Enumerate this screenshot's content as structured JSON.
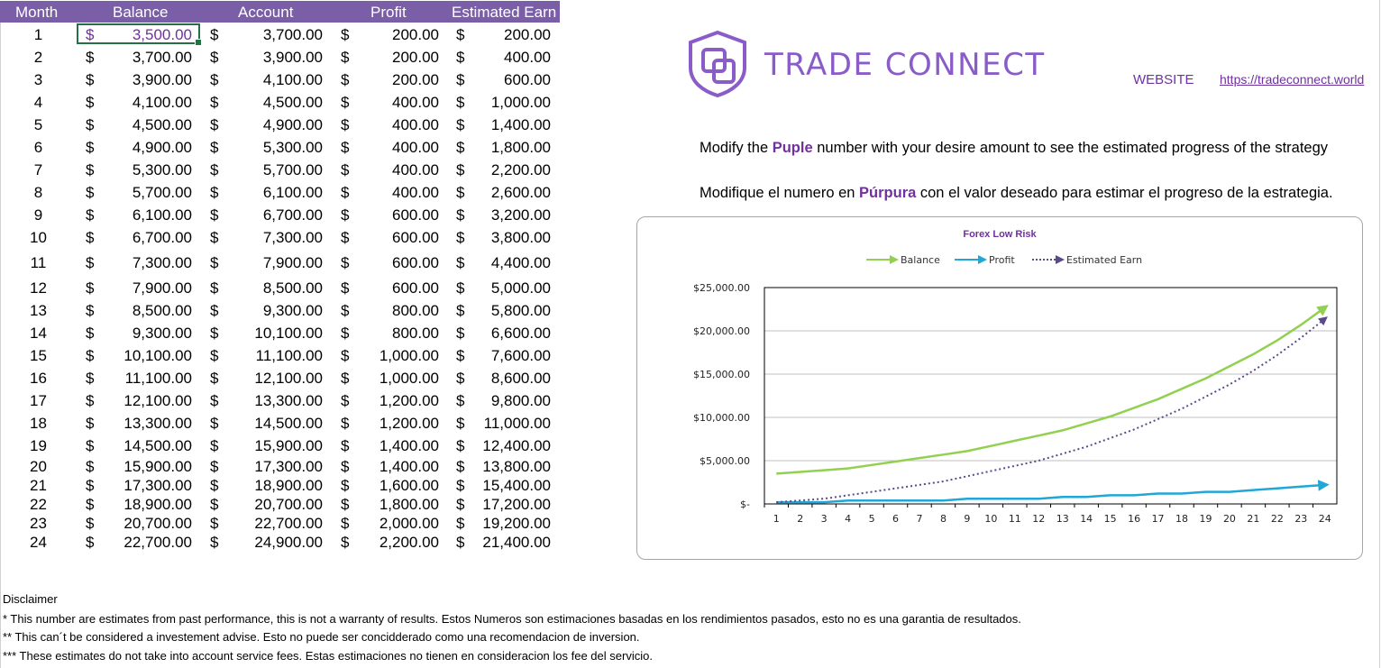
{
  "table": {
    "headers": [
      "Month",
      "Balance",
      "Account",
      "Profit",
      "Estimated Earn"
    ],
    "currency": "$",
    "rows": [
      {
        "month": "1",
        "balance": "3,500.00",
        "account": "3,700.00",
        "profit": "200.00",
        "earn": "200.00"
      },
      {
        "month": "2",
        "balance": "3,700.00",
        "account": "3,900.00",
        "profit": "200.00",
        "earn": "400.00"
      },
      {
        "month": "3",
        "balance": "3,900.00",
        "account": "4,100.00",
        "profit": "200.00",
        "earn": "600.00"
      },
      {
        "month": "4",
        "balance": "4,100.00",
        "account": "4,500.00",
        "profit": "400.00",
        "earn": "1,000.00"
      },
      {
        "month": "5",
        "balance": "4,500.00",
        "account": "4,900.00",
        "profit": "400.00",
        "earn": "1,400.00"
      },
      {
        "month": "6",
        "balance": "4,900.00",
        "account": "5,300.00",
        "profit": "400.00",
        "earn": "1,800.00"
      },
      {
        "month": "7",
        "balance": "5,300.00",
        "account": "5,700.00",
        "profit": "400.00",
        "earn": "2,200.00"
      },
      {
        "month": "8",
        "balance": "5,700.00",
        "account": "6,100.00",
        "profit": "400.00",
        "earn": "2,600.00"
      },
      {
        "month": "9",
        "balance": "6,100.00",
        "account": "6,700.00",
        "profit": "600.00",
        "earn": "3,200.00"
      },
      {
        "month": "10",
        "balance": "6,700.00",
        "account": "7,300.00",
        "profit": "600.00",
        "earn": "3,800.00"
      },
      {
        "month": "11",
        "balance": "7,300.00",
        "account": "7,900.00",
        "profit": "600.00",
        "earn": "4,400.00"
      },
      {
        "month": "12",
        "balance": "7,900.00",
        "account": "8,500.00",
        "profit": "600.00",
        "earn": "5,000.00"
      },
      {
        "month": "13",
        "balance": "8,500.00",
        "account": "9,300.00",
        "profit": "800.00",
        "earn": "5,800.00"
      },
      {
        "month": "14",
        "balance": "9,300.00",
        "account": "10,100.00",
        "profit": "800.00",
        "earn": "6,600.00"
      },
      {
        "month": "15",
        "balance": "10,100.00",
        "account": "11,100.00",
        "profit": "1,000.00",
        "earn": "7,600.00"
      },
      {
        "month": "16",
        "balance": "11,100.00",
        "account": "12,100.00",
        "profit": "1,000.00",
        "earn": "8,600.00"
      },
      {
        "month": "17",
        "balance": "12,100.00",
        "account": "13,300.00",
        "profit": "1,200.00",
        "earn": "9,800.00"
      },
      {
        "month": "18",
        "balance": "13,300.00",
        "account": "14,500.00",
        "profit": "1,200.00",
        "earn": "11,000.00"
      },
      {
        "month": "19",
        "balance": "14,500.00",
        "account": "15,900.00",
        "profit": "1,400.00",
        "earn": "12,400.00"
      },
      {
        "month": "20",
        "balance": "15,900.00",
        "account": "17,300.00",
        "profit": "1,400.00",
        "earn": "13,800.00"
      },
      {
        "month": "21",
        "balance": "17,300.00",
        "account": "18,900.00",
        "profit": "1,600.00",
        "earn": "15,400.00"
      },
      {
        "month": "22",
        "balance": "18,900.00",
        "account": "20,700.00",
        "profit": "1,800.00",
        "earn": "17,200.00"
      },
      {
        "month": "23",
        "balance": "20,700.00",
        "account": "22,700.00",
        "profit": "2,000.00",
        "earn": "19,200.00"
      },
      {
        "month": "24",
        "balance": "22,700.00",
        "account": "24,900.00",
        "profit": "2,200.00",
        "earn": "21,400.00"
      }
    ]
  },
  "brand": {
    "name": "TRADE CONNECT",
    "website_label": "WEBSITE",
    "website_url": "https://tradeconnect.world"
  },
  "instructions": {
    "en_pre": "Modify the ",
    "en_bold": "Puple",
    "en_post": " number with your desire amount to see the estimated progress of the strategy",
    "es_pre": "Modifique el numero en ",
    "es_bold": "Púrpura",
    "es_post": " con el valor deseado para estimar el progreso de la estrategia."
  },
  "chart_data": {
    "type": "line",
    "title": "Forex Low Risk",
    "x": [
      1,
      2,
      3,
      4,
      5,
      6,
      7,
      8,
      9,
      10,
      11,
      12,
      13,
      14,
      15,
      16,
      17,
      18,
      19,
      20,
      21,
      22,
      23,
      24
    ],
    "x_tick_labels": [
      "1",
      "2",
      "3",
      "4",
      "5",
      "6",
      "7",
      "8",
      "9",
      "10",
      "11",
      "12",
      "13",
      "14",
      "15",
      "16",
      "17",
      "18",
      "19",
      "20",
      "21",
      "22",
      "23",
      "24"
    ],
    "ylim": [
      0,
      25000
    ],
    "y_ticks": [
      0,
      5000,
      10000,
      15000,
      20000,
      25000
    ],
    "y_tick_labels": [
      "$-",
      "$5,000.00",
      "$10,000.00",
      "$15,000.00",
      "$20,000.00",
      "$25,000.00"
    ],
    "grid": true,
    "legend_position": "top",
    "series": [
      {
        "name": "Balance",
        "color": "#92d050",
        "style": "solid",
        "values": [
          3500,
          3700,
          3900,
          4100,
          4500,
          4900,
          5300,
          5700,
          6100,
          6700,
          7300,
          7900,
          8500,
          9300,
          10100,
          11100,
          12100,
          13300,
          14500,
          15900,
          17300,
          18900,
          20700,
          22700
        ]
      },
      {
        "name": "Profit",
        "color": "#1fa7d8",
        "style": "solid",
        "values": [
          200,
          200,
          200,
          400,
          400,
          400,
          400,
          400,
          600,
          600,
          600,
          600,
          800,
          800,
          1000,
          1000,
          1200,
          1200,
          1400,
          1400,
          1600,
          1800,
          2000,
          2200
        ]
      },
      {
        "name": "Estimated Earn",
        "color": "#5b4a8a",
        "style": "dotted",
        "values": [
          200,
          400,
          600,
          1000,
          1400,
          1800,
          2200,
          2600,
          3200,
          3800,
          4400,
          5000,
          5800,
          6600,
          7600,
          8600,
          9800,
          11000,
          12400,
          13800,
          15400,
          17200,
          19200,
          21400
        ]
      }
    ]
  },
  "disclaimer": {
    "title": "Disclaimer",
    "lines": [
      "* This number are estimates from past performance, this is not a warranty of results. Estos Numeros son estimaciones basadas en los rendimientos pasados, esto no es una garantia de resultados.",
      "** This can´t be considered a investement advise. Esto no puede ser concidderado como una recomendacion de inversion.",
      "*** These estimates do not take into account service fees. Estas estimaciones no tienen en consideracion los fee del servicio."
    ]
  }
}
